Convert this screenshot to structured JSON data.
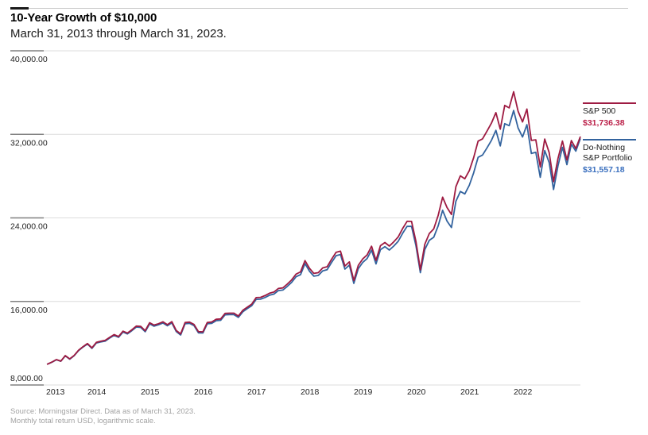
{
  "header": {
    "title": "10-Year Growth of $10,000",
    "subtitle": "March 31, 2013 through March 31, 2023."
  },
  "legend": {
    "sp500": {
      "label": "S&P 500",
      "value": "$31,736.38",
      "line_color": "#9e1b42",
      "value_color": "#bb2049"
    },
    "do_nothing": {
      "label": "Do-Nothing S&P Portfolio",
      "value": "$31,557.18",
      "line_color": "#33639e",
      "value_color": "#3a6fbe"
    }
  },
  "footer": {
    "line1": "Source: Morningstar Direct. Data as of March 31, 2023.",
    "line2": "Monthly total return USD, logarithmic scale."
  },
  "colors": {
    "grid_light": "#dcdcdc",
    "tick_dark_segment": "#808080",
    "axis_text": "#222222",
    "header_rule": "#c9c9c9"
  },
  "chart_data": {
    "type": "line",
    "title": "10-Year Growth of $10,000",
    "subtitle": "March 31, 2013 through March 31, 2023.",
    "x_start": "2013-03",
    "x_end": "2023-03",
    "x_interval": "monthly",
    "x_tick_labels": [
      "2013",
      "2014",
      "2015",
      "2016",
      "2017",
      "2018",
      "2019",
      "2020",
      "2021",
      "2022"
    ],
    "y_ticks": [
      8000,
      16000,
      24000,
      32000,
      40000
    ],
    "y_tick_labels": [
      "8,000.00",
      "16,000.00",
      "24,000.00",
      "32,000.00",
      "40,000.00"
    ],
    "ylim": [
      8000,
      40000
    ],
    "grid": "horizontal",
    "legend_position": "right",
    "series": [
      {
        "name": "S&P 500",
        "color": "#9e1b42",
        "final_value": 31736.38,
        "values": [
          10000,
          10193,
          10431,
          10291,
          10815,
          10501,
          10831,
          11329,
          11675,
          11970,
          11556,
          12084,
          12186,
          12276,
          12564,
          12824,
          12647,
          13153,
          12969,
          13285,
          13643,
          13609,
          13201,
          13960,
          13739,
          13871,
          14050,
          13777,
          14066,
          13218,
          12892,
          13980,
          14022,
          13800,
          13111,
          13094,
          13982,
          14037,
          14290,
          14327,
          14856,
          14877,
          14880,
          14609,
          15149,
          15449,
          15743,
          16368,
          16388,
          16557,
          16790,
          16897,
          17245,
          17299,
          17655,
          18066,
          18621,
          18828,
          19907,
          19172,
          18685,
          18756,
          19208,
          19327,
          20046,
          20699,
          20817,
          19393,
          19789,
          18002,
          19444,
          20068,
          20457,
          21286,
          19934,
          21339,
          21646,
          21304,
          21703,
          22174,
          22979,
          23673,
          23664,
          21716,
          19034,
          21474,
          22496,
          22944,
          24238,
          25981,
          24994,
          24329,
          26993,
          28030,
          27747,
          28513,
          29762,
          31351,
          31570,
          32306,
          33075,
          34081,
          32496,
          34774,
          34534,
          36081,
          34215,
          33192,
          34423,
          31421,
          31478,
          28881,
          31544,
          30257,
          27470,
          29695,
          31355,
          29549,
          31405,
          30639,
          31736.38
        ]
      },
      {
        "name": "Do-Nothing S&P Portfolio",
        "color": "#33639e",
        "final_value": 31557.18,
        "values": [
          10000,
          10183,
          10416,
          10271,
          10790,
          10471,
          10796,
          11289,
          11630,
          11920,
          11501,
          12024,
          12121,
          12206,
          12492,
          12749,
          12569,
          13071,
          12884,
          13197,
          13551,
          13514,
          13101,
          13855,
          13634,
          13763,
          13940,
          13667,
          13954,
          13113,
          12792,
          13868,
          13907,
          13688,
          12996,
          12982,
          13857,
          13909,
          14160,
          14197,
          14721,
          14741,
          14744,
          14477,
          15011,
          15309,
          15593,
          16203,
          16218,
          16377,
          16600,
          16702,
          17040,
          17089,
          17435,
          17831,
          18371,
          18568,
          19622,
          18897,
          18420,
          18486,
          18928,
          19042,
          19746,
          20384,
          20497,
          19098,
          19484,
          17732,
          19134,
          19738,
          20112,
          20916,
          19594,
          20959,
          21251,
          20919,
          21303,
          21754,
          22529,
          23193,
          23184,
          21316,
          18754,
          20974,
          21846,
          22144,
          23238,
          24731,
          23694,
          23079,
          25593,
          26530,
          26297,
          27113,
          28312,
          29801,
          30020,
          30706,
          31425,
          32381,
          30896,
          33024,
          32834,
          34281,
          32615,
          31742,
          32923,
          30171,
          30278,
          27881,
          30444,
          29307,
          26720,
          28995,
          30755,
          29099,
          31055,
          30389,
          31557.18
        ]
      }
    ]
  }
}
